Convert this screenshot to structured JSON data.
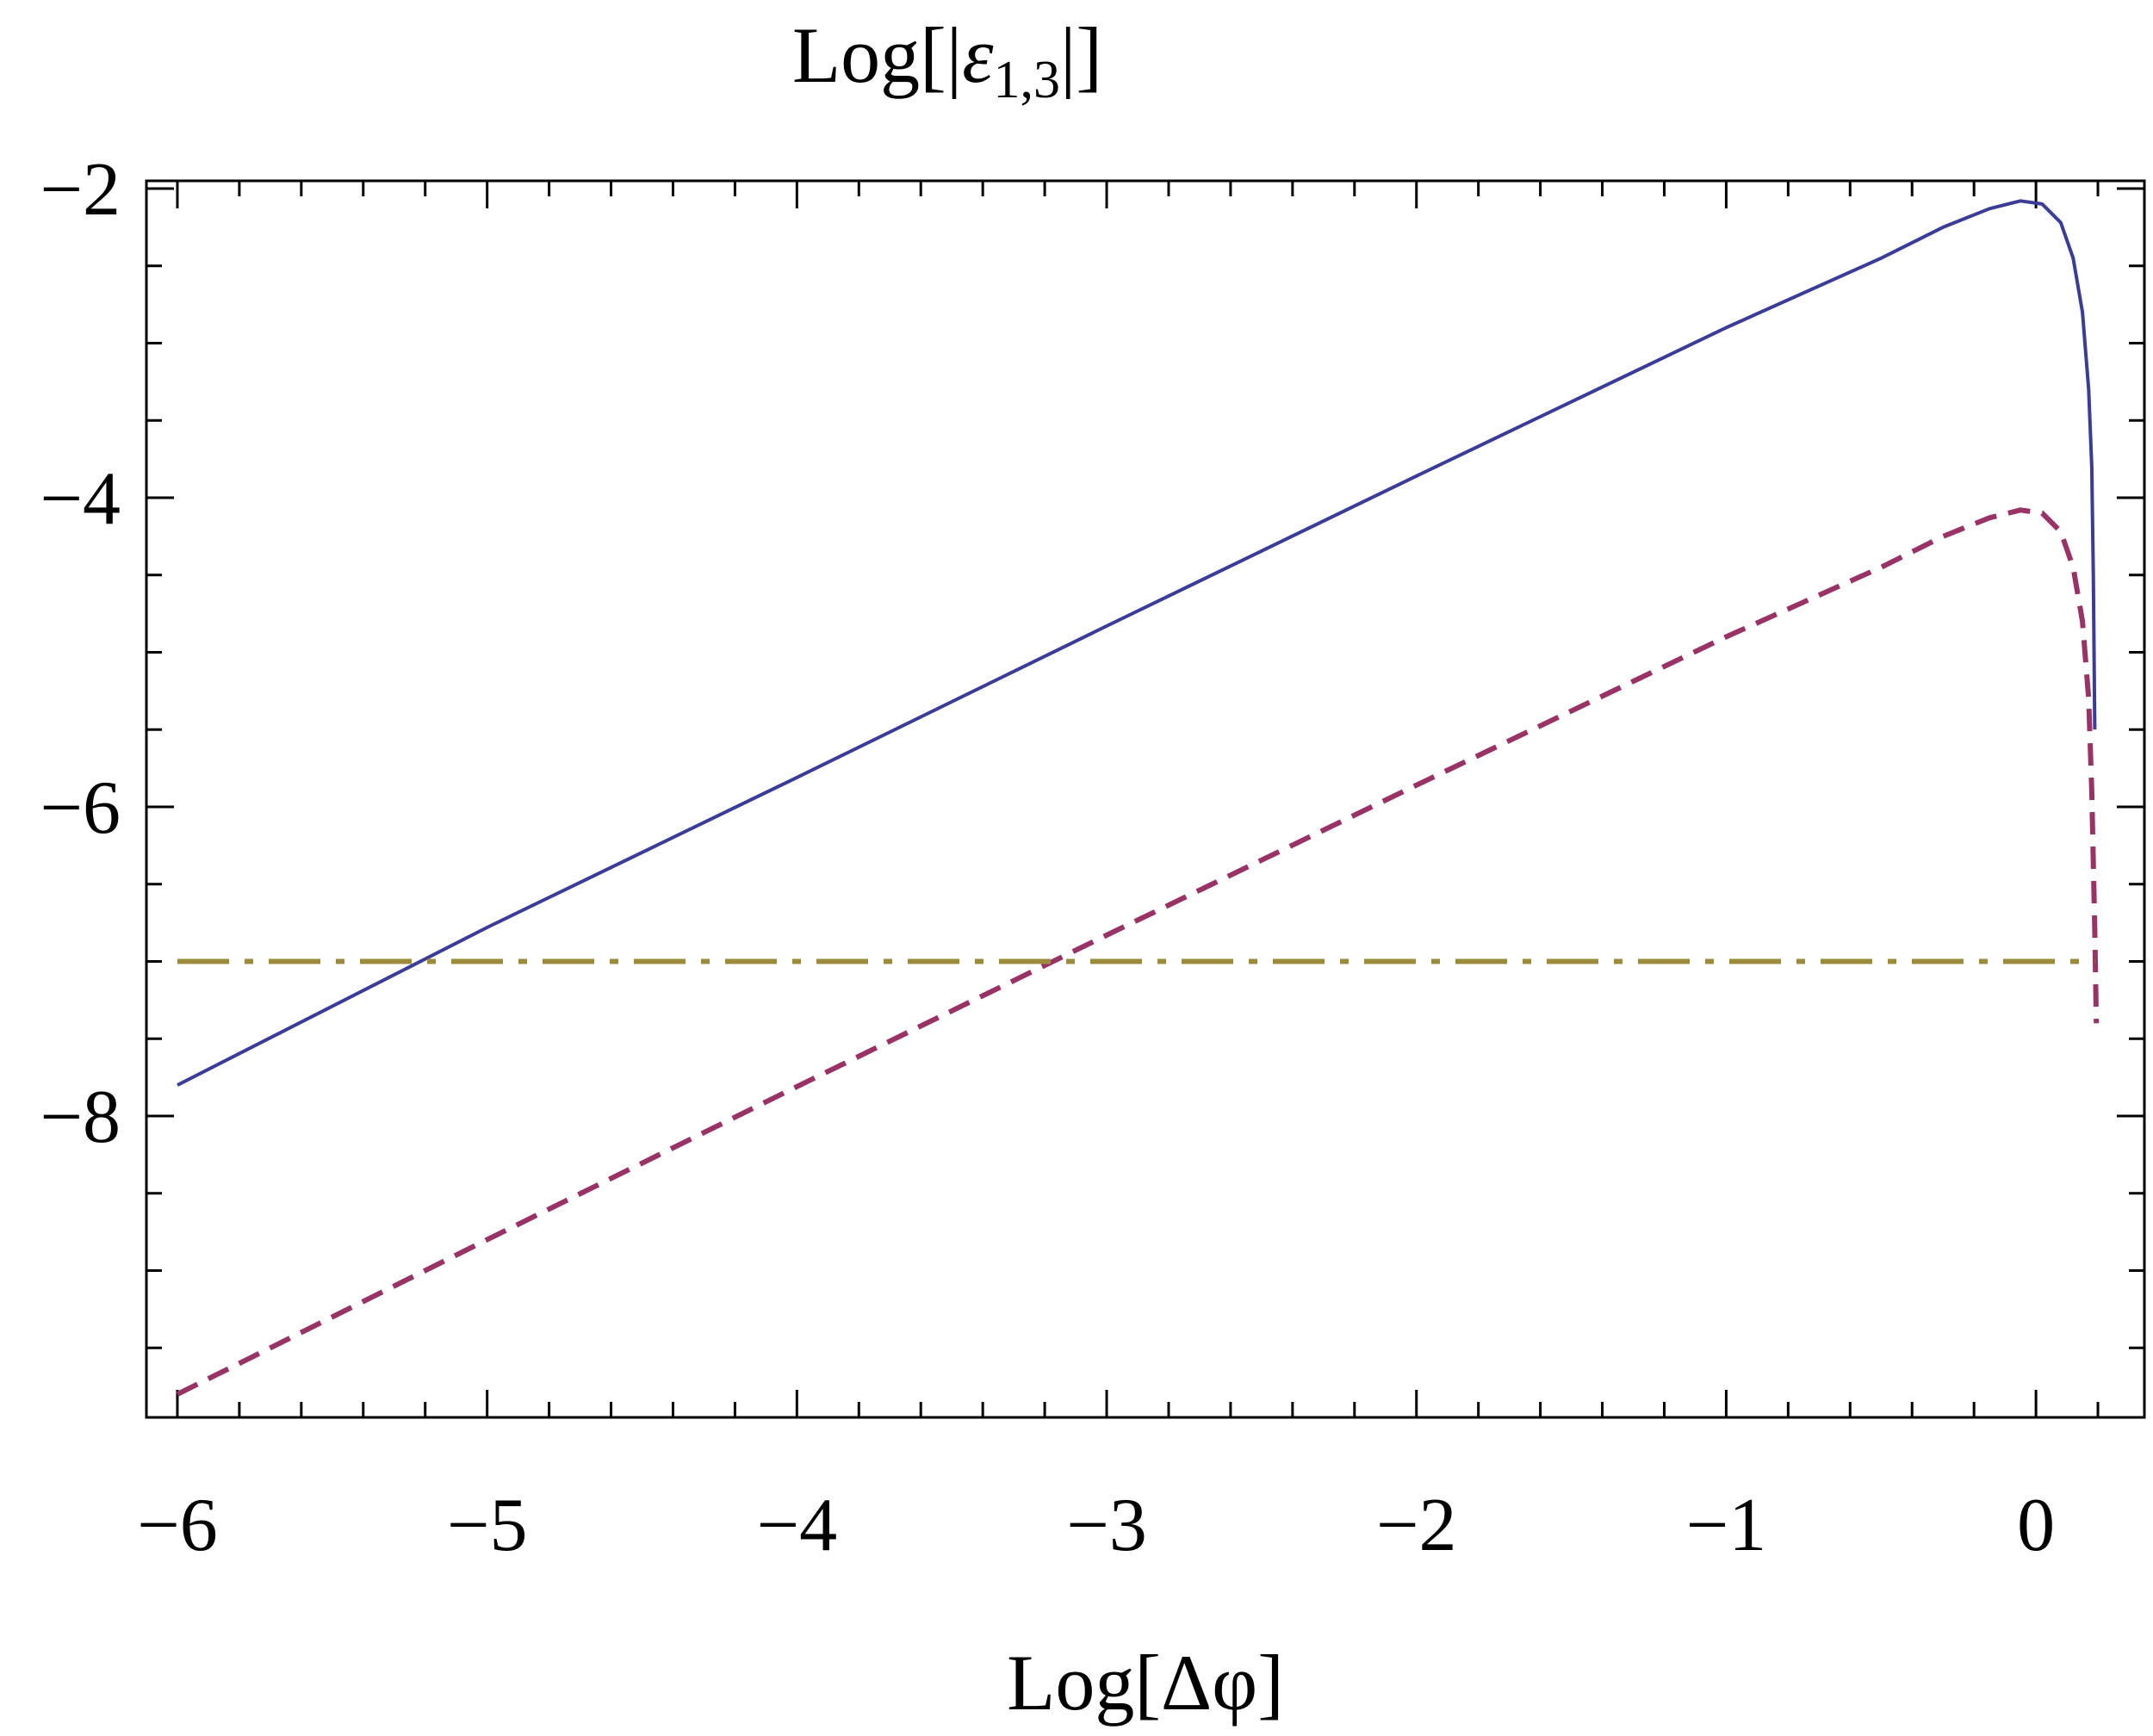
{
  "chart_data": {
    "type": "line",
    "title_main": "Log[|",
    "title_symbol": "ε",
    "title_sub": "1,3",
    "title_end": "|]",
    "xlabel": "Log[Δφ]",
    "ylabel": "",
    "xlim": [
      -6.1,
      0.35
    ],
    "ylim": [
      -9.95,
      -1.95
    ],
    "xticks": [
      -6,
      -5,
      -4,
      -3,
      -2,
      -1,
      0
    ],
    "xtick_labels": [
      "−6",
      "−5",
      "−4",
      "−3",
      "−2",
      "−1",
      "0"
    ],
    "yticks": [
      -2,
      -4,
      -6,
      -8
    ],
    "ytick_labels": [
      "−2",
      "−4",
      "−6",
      "−8"
    ],
    "x_minor_step": 0.2,
    "y_minor_step": 0.5,
    "grid": false,
    "legend": "none",
    "series": [
      {
        "style": "solid",
        "color": "#3b3b98",
        "x": [
          -6.0,
          -5.0,
          -4.0,
          -3.0,
          -2.0,
          -1.0,
          -0.5,
          -0.3,
          -0.15,
          -0.05,
          0.02,
          0.08,
          0.12,
          0.15,
          0.17,
          0.18,
          0.185,
          0.19
        ],
        "y": [
          -7.8,
          -6.78,
          -5.81,
          -4.83,
          -3.86,
          -2.9,
          -2.45,
          -2.25,
          -2.13,
          -2.08,
          -2.1,
          -2.22,
          -2.45,
          -2.8,
          -3.3,
          -3.8,
          -4.5,
          -5.5
        ]
      },
      {
        "style": "dashed",
        "color": "#993366",
        "x": [
          -6.0,
          -5.0,
          -4.0,
          -3.0,
          -2.0,
          -1.0,
          -0.5,
          -0.3,
          -0.15,
          -0.05,
          0.02,
          0.08,
          0.12,
          0.15,
          0.17,
          0.18,
          0.19,
          0.195
        ],
        "y": [
          -9.8,
          -8.8,
          -7.81,
          -6.83,
          -5.86,
          -4.9,
          -4.45,
          -4.25,
          -4.13,
          -4.08,
          -4.1,
          -4.22,
          -4.45,
          -4.8,
          -5.3,
          -5.9,
          -6.8,
          -7.4
        ]
      },
      {
        "style": "dashdot",
        "color": "#9b8c3c",
        "x": [
          -6.0,
          0.19
        ],
        "y": [
          -7.0,
          -7.0
        ]
      }
    ]
  }
}
